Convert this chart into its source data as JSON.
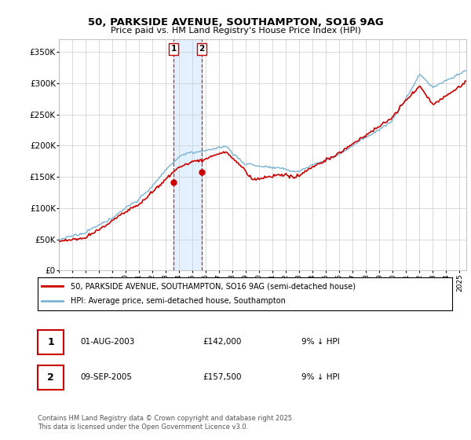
{
  "title": "50, PARKSIDE AVENUE, SOUTHAMPTON, SO16 9AG",
  "subtitle": "Price paid vs. HM Land Registry's House Price Index (HPI)",
  "ylim": [
    0,
    370000
  ],
  "xlim_start": 1995,
  "xlim_end": 2025.5,
  "hpi_color": "#7ab3d4",
  "price_color": "#cc0000",
  "shade_color": "#ddeeff",
  "sale1_date": 2003.58,
  "sale1_price": 142000,
  "sale2_date": 2005.69,
  "sale2_price": 157500,
  "legend_price_label": "50, PARKSIDE AVENUE, SOUTHAMPTON, SO16 9AG (semi-detached house)",
  "legend_hpi_label": "HPI: Average price, semi-detached house, Southampton",
  "table_rows": [
    [
      "1",
      "01-AUG-2003",
      "£142,000",
      "9% ↓ HPI"
    ],
    [
      "2",
      "09-SEP-2005",
      "£157,500",
      "9% ↓ HPI"
    ]
  ],
  "footnote": "Contains HM Land Registry data © Crown copyright and database right 2025.\nThis data is licensed under the Open Government Licence v3.0.",
  "background_color": "#ffffff"
}
